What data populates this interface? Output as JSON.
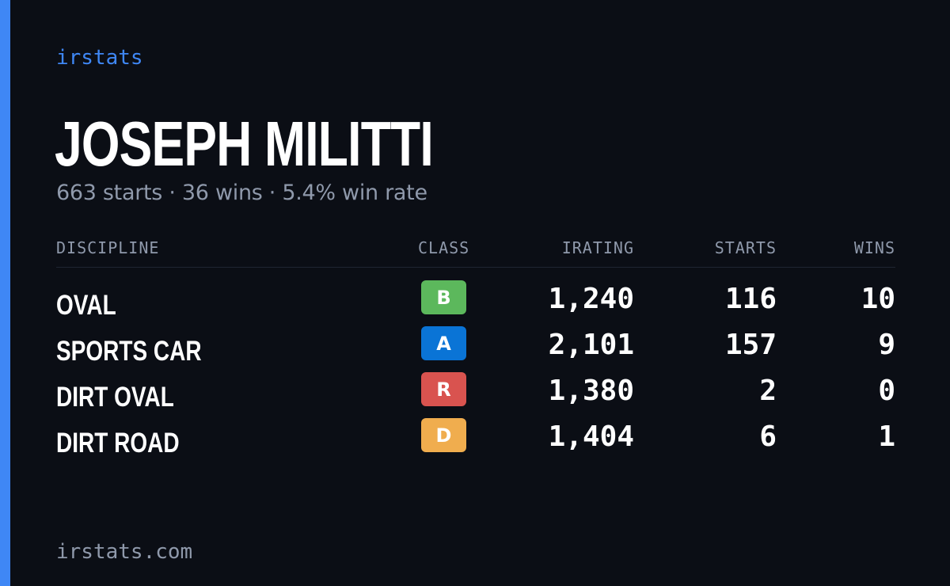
{
  "colors": {
    "background": "#0b0e15",
    "accent": "#3f87f5",
    "muted_text": "#8f99ab",
    "text": "#ffffff",
    "divider": "#1f2532"
  },
  "brand": "irstats",
  "driver": {
    "name": "JOSEPH MILITTI",
    "summary": "663 starts · 36 wins · 5.4% win rate"
  },
  "table": {
    "headers": {
      "discipline": "DISCIPLINE",
      "class": "CLASS",
      "irating": "IRATING",
      "starts": "STARTS",
      "wins": "WINS"
    },
    "rows": [
      {
        "discipline": "OVAL",
        "class": "B",
        "class_color": "#5cb85c",
        "irating": "1,240",
        "starts": "116",
        "wins": "10"
      },
      {
        "discipline": "SPORTS CAR",
        "class": "A",
        "class_color": "#0a74d6",
        "irating": "2,101",
        "starts": "157",
        "wins": "9"
      },
      {
        "discipline": "DIRT OVAL",
        "class": "R",
        "class_color": "#d9534f",
        "irating": "1,380",
        "starts": "2",
        "wins": "0"
      },
      {
        "discipline": "DIRT ROAD",
        "class": "D",
        "class_color": "#f0ad4e",
        "irating": "1,404",
        "starts": "6",
        "wins": "1"
      }
    ]
  },
  "footer": "irstats.com"
}
